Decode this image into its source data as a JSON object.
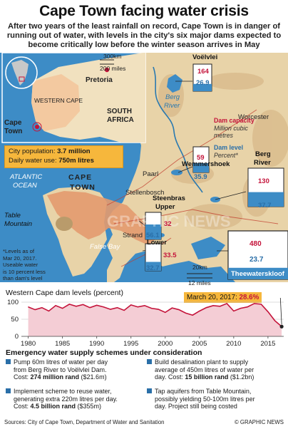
{
  "header": {
    "title": "Cape Town facing water crisis",
    "intro": "After two years of the least rainfall on record, Cape Town is in danger of running out of water, with levels in the city's six major dams expected to become critically low before the winter season arrives in May"
  },
  "inset": {
    "scale_km": "300km",
    "scale_mi": "200 miles",
    "pretoria": "Pretoria",
    "western_cape": "WESTERN CAPE",
    "south_africa_l1": "SOUTH",
    "south_africa_l2": "AFRICA",
    "cape_town_l1": "Cape",
    "cape_town_l2": "Town"
  },
  "map_labels": {
    "atlantic_l1": "ATLANTIC",
    "atlantic_l2": "OCEAN",
    "cape_town_l1": "CAPE",
    "cape_town_l2": "TOWN",
    "table_mountain_l1": "Table",
    "table_mountain_l2": "Mountain",
    "paarl": "Paarl",
    "stellenbosch": "Stellenbosch",
    "strand": "Strand",
    "false_bay": "False Bay",
    "worcester": "Worcester",
    "berg_river_l1": "Berg",
    "berg_river_l2": "River",
    "scale_km": "20km",
    "scale_mi": "12 miles",
    "watermark": "GRAPHIC NEWS"
  },
  "legend": {
    "capacity_title": "Dam capacity",
    "capacity_sub1": "Million cubic",
    "capacity_sub2": "metres",
    "level_title": "Dam level",
    "level_sub": "Percent*"
  },
  "dams": [
    {
      "name": "Voëlvlei",
      "capacity": "164",
      "level": "26.9",
      "level_pct": 26.9
    },
    {
      "name": "Wemmershoek",
      "capacity": "59",
      "level": "35.9",
      "level_pct": 35.9
    },
    {
      "name_l1": "Berg",
      "name_l2": "River",
      "capacity": "130",
      "level": "37.7",
      "level_pct": 37.7
    },
    {
      "name_l1": "Steenbras",
      "name_l2": "Upper",
      "capacity": "32",
      "level": "56.1",
      "level_pct": 56.1
    },
    {
      "name": "Lower",
      "capacity": "33.5",
      "level": "32.7",
      "level_pct": 32.7
    },
    {
      "name": "Theewaterskloof",
      "capacity": "480",
      "level": "23.7",
      "level_pct": 23.7
    }
  ],
  "population_box": {
    "pop_label": "City population: ",
    "pop_value": "3.7 million",
    "use_label": "Daily water use: ",
    "use_value": "750m litres"
  },
  "note": {
    "l1": "*Levels as of",
    "l2": "Mar 20, 2017.",
    "l3": "Useable water",
    "l4": "is 10 percent less",
    "l5": "than dam's level"
  },
  "chart_data": {
    "type": "area",
    "title": "Western Cape dam levels",
    "ylabel": "(percent)",
    "x": [
      1980,
      1981,
      1982,
      1983,
      1984,
      1985,
      1986,
      1987,
      1988,
      1989,
      1990,
      1991,
      1992,
      1993,
      1994,
      1995,
      1996,
      1997,
      1998,
      1999,
      2000,
      2001,
      2002,
      2003,
      2004,
      2005,
      2006,
      2007,
      2008,
      2009,
      2010,
      2011,
      2012,
      2013,
      2014,
      2015,
      2016,
      2017
    ],
    "values": [
      86,
      78,
      84,
      74,
      90,
      82,
      94,
      88,
      93,
      84,
      91,
      86,
      79,
      84,
      76,
      92,
      86,
      90,
      82,
      79,
      70,
      83,
      78,
      68,
      62,
      74,
      84,
      90,
      88,
      96,
      74,
      82,
      86,
      96,
      94,
      72,
      46,
      28.6
    ],
    "xlim": [
      1979,
      2017.3
    ],
    "ylim": [
      0,
      100
    ],
    "yticks": [
      "0",
      "50",
      "100"
    ],
    "xticks": [
      "1980",
      "1985",
      "1990",
      "1995",
      "2000",
      "2005",
      "2010",
      "2015"
    ],
    "callout_date": "March 20, 2017: ",
    "callout_value": "28.6%",
    "grid": true,
    "colors": {
      "line": "#c4133a",
      "fill": "#f4cdd5",
      "callout": "#f6b73c"
    }
  },
  "emergency": {
    "title": "Emergency water supply schemes under consideration",
    "schemes": [
      {
        "l1": "Pump 60m litres of water per day",
        "l2": "from Berg River to Voëlvlei Dam.",
        "cost_label": "Cost: ",
        "cost_value": "274 million rand",
        "cost_usd": " ($21.6m)"
      },
      {
        "l1": "Implement scheme to reuse water,",
        "l2": "generating extra 220m litres per day.",
        "cost_label": "Cost: ",
        "cost_value": "4.5 billion rand",
        "cost_usd": " ($355m)"
      },
      {
        "l1": "Build desalination plant to supply",
        "l2": "average of 450m litres of water per",
        "l3_pre": "day. Cost: ",
        "cost_value": "15 billion rand",
        "cost_usd": " ($1.2bn)"
      },
      {
        "l1": "Tap aquifers from Table Mountain,",
        "l2": "possibly yielding 50-100m litres per",
        "l3": "day. Project still being costed"
      }
    ]
  },
  "footer": {
    "sources": "Sources: City of Cape Town, Department of Water and Sanitation",
    "brand": "© GRAPHIC NEWS"
  }
}
